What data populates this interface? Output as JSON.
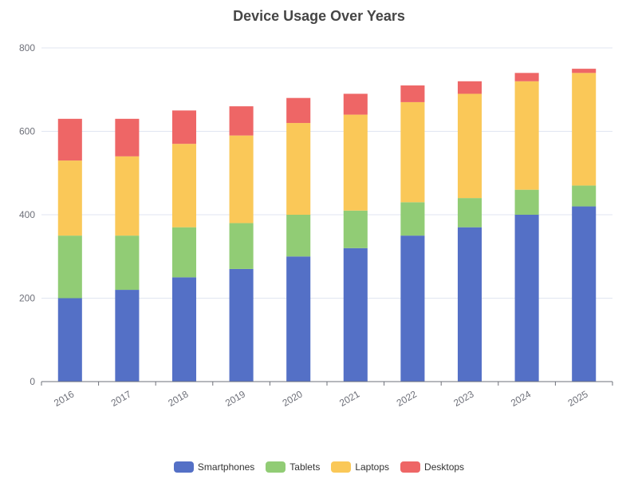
{
  "chart_data": {
    "type": "bar",
    "stacked": true,
    "title": "Device Usage Over Years",
    "categories": [
      "2016",
      "2017",
      "2018",
      "2019",
      "2020",
      "2021",
      "2022",
      "2023",
      "2024",
      "2025"
    ],
    "series": [
      {
        "name": "Smartphones",
        "color": "#5470c6",
        "values": [
          200,
          220,
          250,
          270,
          300,
          320,
          350,
          370,
          400,
          420
        ]
      },
      {
        "name": "Tablets",
        "color": "#91cc75",
        "values": [
          150,
          130,
          120,
          110,
          100,
          90,
          80,
          70,
          60,
          50
        ]
      },
      {
        "name": "Laptops",
        "color": "#fac858",
        "values": [
          180,
          190,
          200,
          210,
          220,
          230,
          240,
          250,
          260,
          270
        ]
      },
      {
        "name": "Desktops",
        "color": "#ee6666",
        "values": [
          100,
          90,
          80,
          70,
          60,
          50,
          40,
          30,
          20,
          10
        ]
      }
    ],
    "ylim": [
      0,
      800
    ],
    "yticks": [
      0,
      200,
      400,
      600,
      800
    ],
    "grid": true,
    "legend_position": "bottom-center"
  }
}
